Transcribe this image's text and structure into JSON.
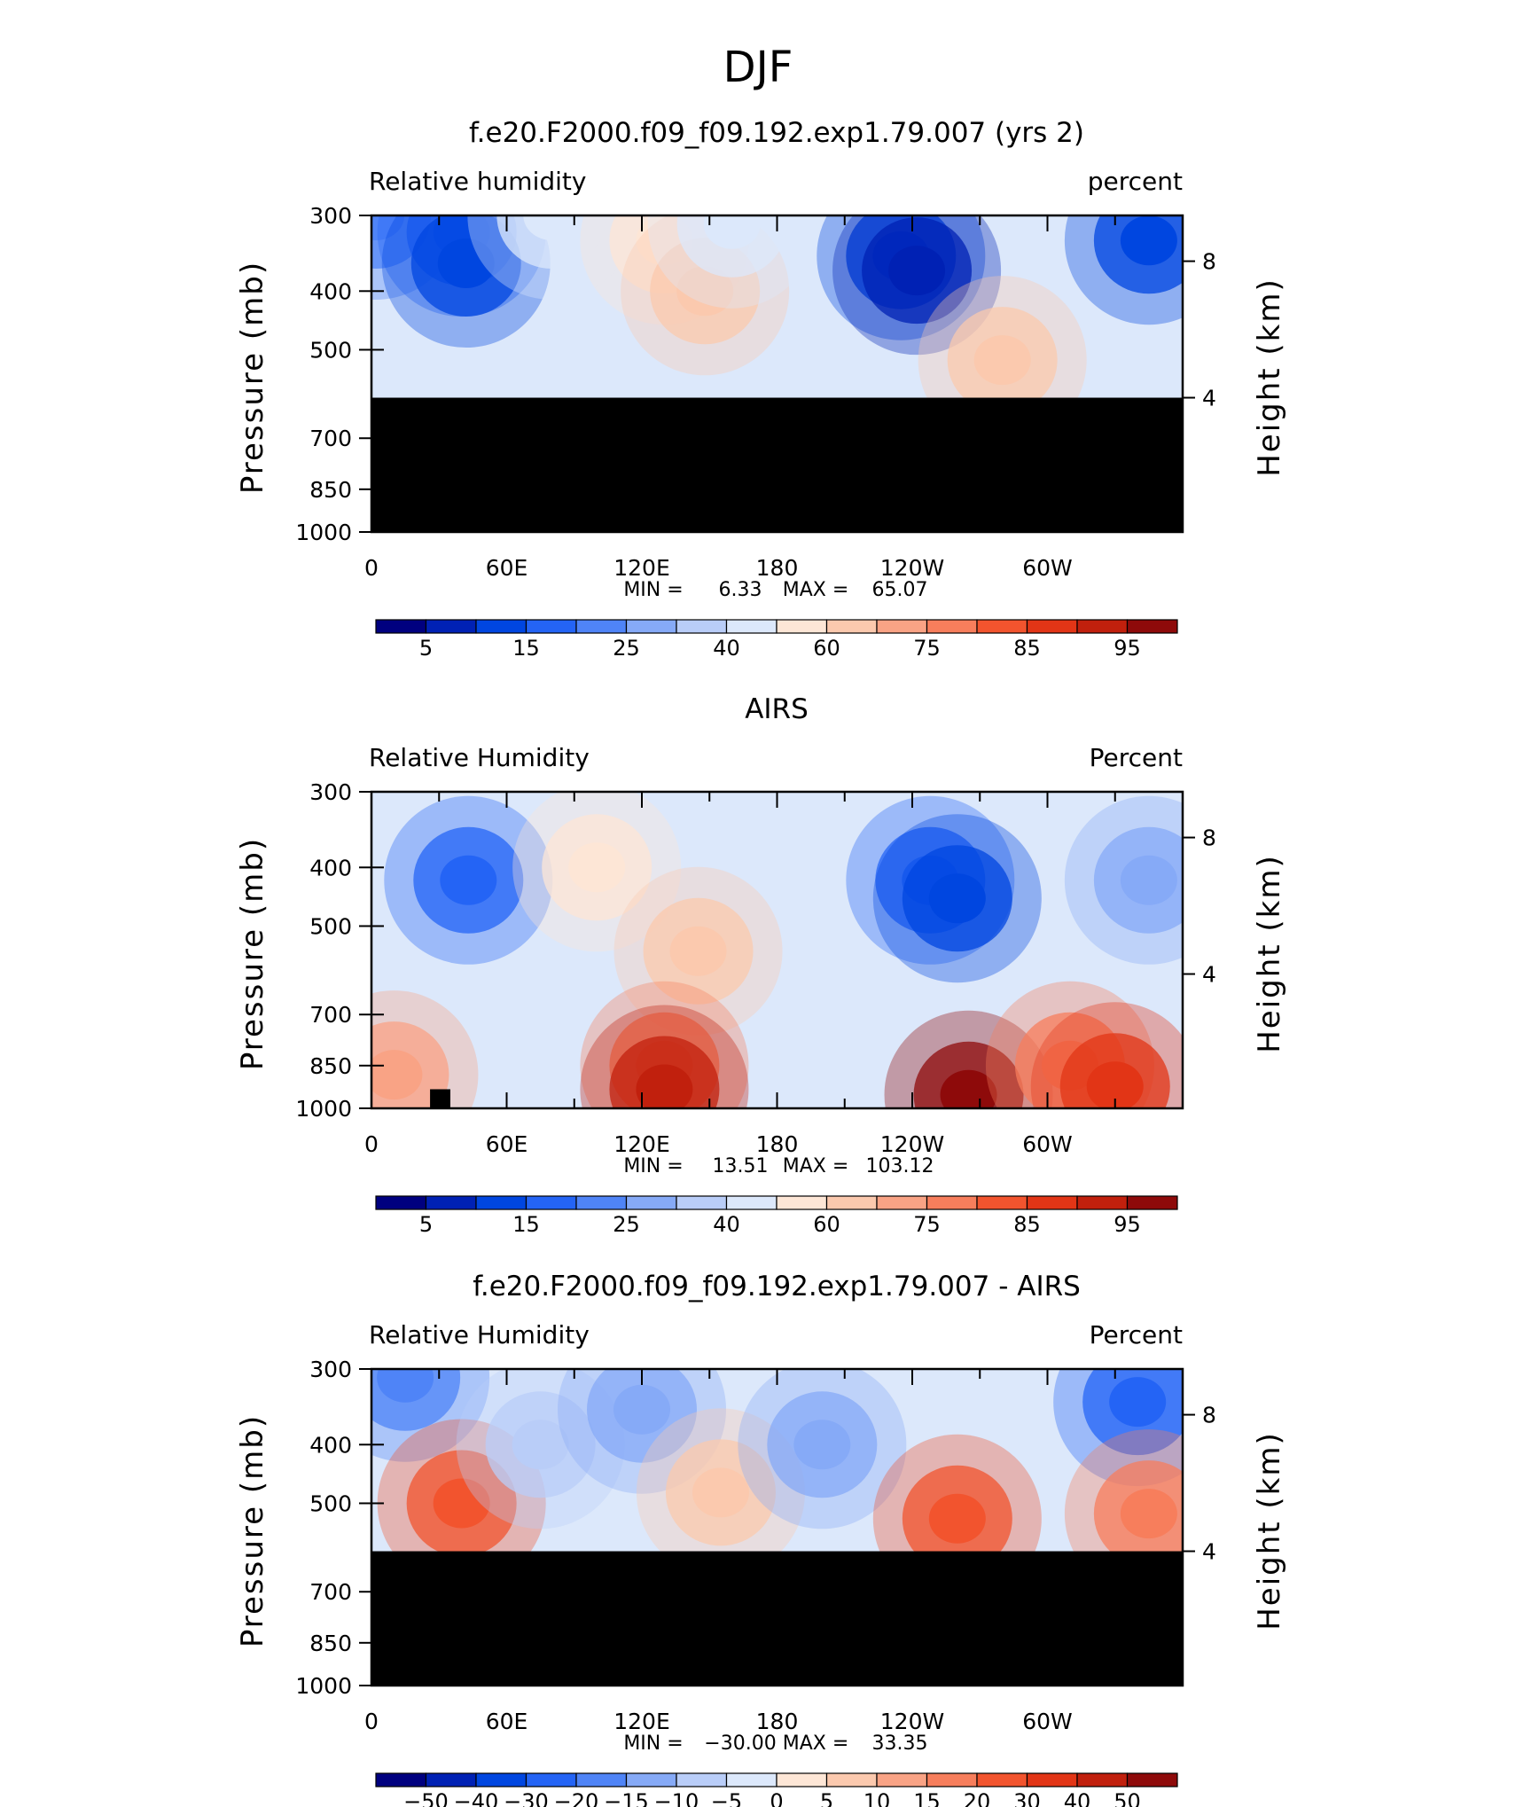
{
  "figure": {
    "title": "DJF"
  },
  "palette": [
    "#00007f",
    "#0021b4",
    "#0046e0",
    "#2464f5",
    "#4f84f7",
    "#86aaf7",
    "#b9cdf8",
    "#dce8fb",
    "#fde6d6",
    "#fbc9ae",
    "#f9a385",
    "#f77e5c",
    "#f2542e",
    "#e23516",
    "#c1200d",
    "#8e0a0a"
  ],
  "panels": [
    {
      "title": "f.e20.F2000.f09_f09.192.exp1.79.007 (yrs 2)",
      "field_label": "Relative humidity",
      "units_label": "percent",
      "y_axis_label": "Pressure (mb)",
      "right_axis_label": "Height (km)",
      "y_ticks": [
        "300",
        "400",
        "500",
        "700",
        "850",
        "1000"
      ],
      "height_ticks": [
        "8",
        "4"
      ],
      "x_ticks": [
        "0",
        "60E",
        "120E",
        "180",
        "120W",
        "60W"
      ],
      "min_label": "MIN =",
      "min_value": "6.33",
      "max_label": "MAX =",
      "max_value": "65.07",
      "colorbar_labels": [
        "5",
        "15",
        "25",
        "40",
        "60",
        "75",
        "85",
        "95"
      ],
      "mask_top_mb": 600,
      "features": [
        {
          "lon": 2,
          "p": 300,
          "level": 4
        },
        {
          "lon": 40,
          "p": 320,
          "level": 3
        },
        {
          "lon": 42,
          "p": 360,
          "level": 2
        },
        {
          "lon": 80,
          "p": 300,
          "level": 7
        },
        {
          "lon": 130,
          "p": 330,
          "level": 8
        },
        {
          "lon": 148,
          "p": 400,
          "level": 9
        },
        {
          "lon": 160,
          "p": 310,
          "level": 7
        },
        {
          "lon": 235,
          "p": 350,
          "level": 2
        },
        {
          "lon": 242,
          "p": 370,
          "level": 1
        },
        {
          "lon": 280,
          "p": 520,
          "level": 9
        },
        {
          "lon": 345,
          "p": 330,
          "level": 2
        }
      ]
    },
    {
      "title": "AIRS",
      "field_label": "Relative Humidity",
      "units_label": "Percent",
      "y_axis_label": "Pressure (mb)",
      "right_axis_label": "Height (km)",
      "y_ticks": [
        "300",
        "400",
        "500",
        "700",
        "850",
        "1000"
      ],
      "height_ticks": [
        "8",
        "4"
      ],
      "x_ticks": [
        "0",
        "60E",
        "120E",
        "180",
        "120W",
        "60W"
      ],
      "min_label": "MIN =",
      "min_value": "13.51",
      "max_label": "MAX =",
      "max_value": "103.12",
      "colorbar_labels": [
        "5",
        "15",
        "25",
        "40",
        "60",
        "75",
        "85",
        "95"
      ],
      "features": [
        {
          "lon": 43,
          "p": 420,
          "level": 3
        },
        {
          "lon": 100,
          "p": 400,
          "level": 8
        },
        {
          "lon": 145,
          "p": 550,
          "level": 9
        },
        {
          "lon": 130,
          "p": 850,
          "level": 11
        },
        {
          "lon": 130,
          "p": 930,
          "level": 14
        },
        {
          "lon": 248,
          "p": 420,
          "level": 3
        },
        {
          "lon": 260,
          "p": 450,
          "level": 2
        },
        {
          "lon": 265,
          "p": 950,
          "level": 15
        },
        {
          "lon": 310,
          "p": 850,
          "level": 11
        },
        {
          "lon": 330,
          "p": 920,
          "level": 13
        },
        {
          "lon": 345,
          "p": 420,
          "level": 5
        },
        {
          "lon": 10,
          "p": 880,
          "level": 10
        }
      ]
    },
    {
      "title": "f.e20.F2000.f09_f09.192.exp1.79.007 - AIRS",
      "field_label": "Relative Humidity",
      "units_label": "Percent",
      "y_axis_label": "Pressure (mb)",
      "right_axis_label": "Height (km)",
      "y_ticks": [
        "300",
        "400",
        "500",
        "700",
        "850",
        "1000"
      ],
      "height_ticks": [
        "8",
        "4"
      ],
      "x_ticks": [
        "0",
        "60E",
        "120E",
        "180",
        "120W",
        "60W"
      ],
      "min_label": "MIN =",
      "min_value": "−30.00",
      "max_label": "MAX =",
      "max_value": "33.35",
      "colorbar_labels": [
        "−50",
        "−40",
        "−30",
        "−20",
        "−15",
        "−10",
        "−5",
        "0",
        "5",
        "10",
        "15",
        "20",
        "30",
        "40",
        "50"
      ],
      "mask_top_mb": 600,
      "features": [
        {
          "lon": 15,
          "p": 310,
          "level": 4
        },
        {
          "lon": 40,
          "p": 500,
          "level": 12
        },
        {
          "lon": 75,
          "p": 400,
          "level": 6
        },
        {
          "lon": 120,
          "p": 350,
          "level": 5
        },
        {
          "lon": 155,
          "p": 480,
          "level": 9
        },
        {
          "lon": 200,
          "p": 400,
          "level": 5
        },
        {
          "lon": 260,
          "p": 530,
          "level": 12
        },
        {
          "lon": 340,
          "p": 340,
          "level": 3
        },
        {
          "lon": 345,
          "p": 520,
          "level": 11
        }
      ]
    }
  ],
  "chart_data": [
    {
      "type": "heatmap",
      "title": "f.e20.F2000.f09_f09.192.exp1.79.007 (yrs 2)",
      "xlabel": "",
      "ylabel": "Pressure (mb)",
      "y2label": "Height (km)",
      "x_range": [
        0,
        360
      ],
      "y_range_mb": [
        1000,
        300
      ],
      "y_scale": "log",
      "x_tick_values": [
        0,
        60,
        120,
        180,
        240,
        300
      ],
      "y_tick_values": [
        300,
        400,
        500,
        700,
        850,
        1000
      ],
      "height_tick_values_km": [
        8,
        4
      ],
      "colorbar_levels": [
        5,
        10,
        15,
        20,
        25,
        30,
        40,
        50,
        60,
        70,
        75,
        80,
        85,
        90,
        95
      ],
      "min": 6.33,
      "max": 65.07,
      "masked_below_mb": 600,
      "legend": "bottom colorbar"
    },
    {
      "type": "heatmap",
      "title": "AIRS",
      "xlabel": "",
      "ylabel": "Pressure (mb)",
      "y2label": "Height (km)",
      "x_range": [
        0,
        360
      ],
      "y_range_mb": [
        1000,
        300
      ],
      "y_scale": "log",
      "x_tick_values": [
        0,
        60,
        120,
        180,
        240,
        300
      ],
      "y_tick_values": [
        300,
        400,
        500,
        700,
        850,
        1000
      ],
      "height_tick_values_km": [
        8,
        4
      ],
      "colorbar_levels": [
        5,
        10,
        15,
        20,
        25,
        30,
        40,
        50,
        60,
        70,
        75,
        80,
        85,
        90,
        95
      ],
      "min": 13.51,
      "max": 103.12,
      "legend": "bottom colorbar"
    },
    {
      "type": "heatmap",
      "title": "f.e20.F2000.f09_f09.192.exp1.79.007 - AIRS",
      "xlabel": "",
      "ylabel": "Pressure (mb)",
      "y2label": "Height (km)",
      "x_range": [
        0,
        360
      ],
      "y_range_mb": [
        1000,
        300
      ],
      "y_scale": "log",
      "x_tick_values": [
        0,
        60,
        120,
        180,
        240,
        300
      ],
      "y_tick_values": [
        300,
        400,
        500,
        700,
        850,
        1000
      ],
      "height_tick_values_km": [
        8,
        4
      ],
      "colorbar_levels": [
        -50,
        -40,
        -30,
        -20,
        -15,
        -10,
        -5,
        0,
        5,
        10,
        15,
        20,
        30,
        40,
        50
      ],
      "min": -30.0,
      "max": 33.35,
      "masked_below_mb": 600,
      "legend": "bottom colorbar"
    }
  ]
}
